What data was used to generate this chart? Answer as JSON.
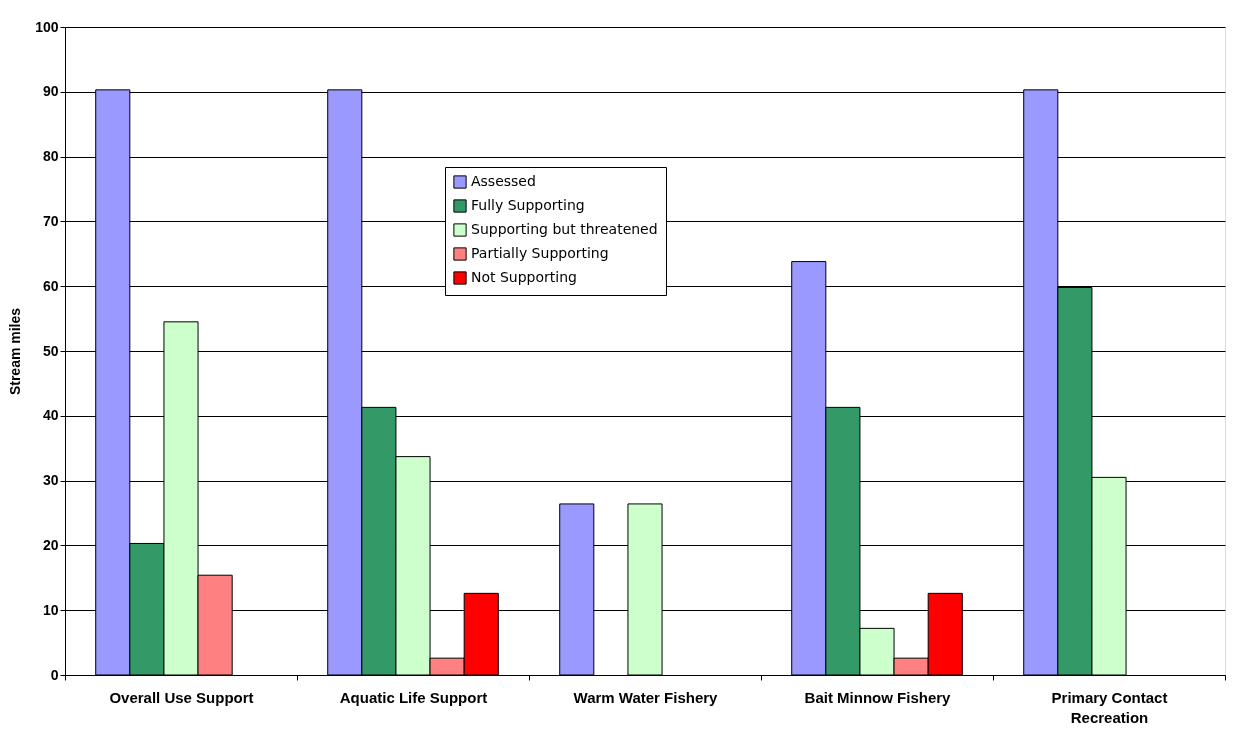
{
  "chart_data": {
    "type": "bar",
    "ylabel": "Stream miles",
    "categories": [
      "Overall Use Support",
      "Aquatic Life Support",
      "Warm Water Fishery",
      "Bait Minnow Fishery",
      "Primary Contact Recreation"
    ],
    "series": [
      {
        "name": "Assessed",
        "color": "#9999ff",
        "values": [
          90.3,
          90.3,
          26.4,
          63.8,
          90.3
        ]
      },
      {
        "name": "Fully Supporting",
        "color": "#339966",
        "values": [
          20.3,
          41.3,
          null,
          41.3,
          59.8
        ]
      },
      {
        "name": "Supporting but threatened",
        "color": "#ccffcc",
        "values": [
          54.5,
          33.7,
          26.4,
          7.2,
          30.5
        ]
      },
      {
        "name": "Partially Supporting",
        "color": "#ff8080",
        "values": [
          15.4,
          2.6,
          null,
          2.6,
          null
        ]
      },
      {
        "name": "Not Supporting",
        "color": "#ff0000",
        "values": [
          null,
          12.6,
          null,
          12.6,
          null
        ]
      }
    ],
    "ylim": [
      0,
      100
    ],
    "yticks": [
      0,
      10,
      20,
      30,
      40,
      50,
      60,
      70,
      80,
      90,
      100
    ],
    "grid": "y",
    "legend": "top"
  }
}
